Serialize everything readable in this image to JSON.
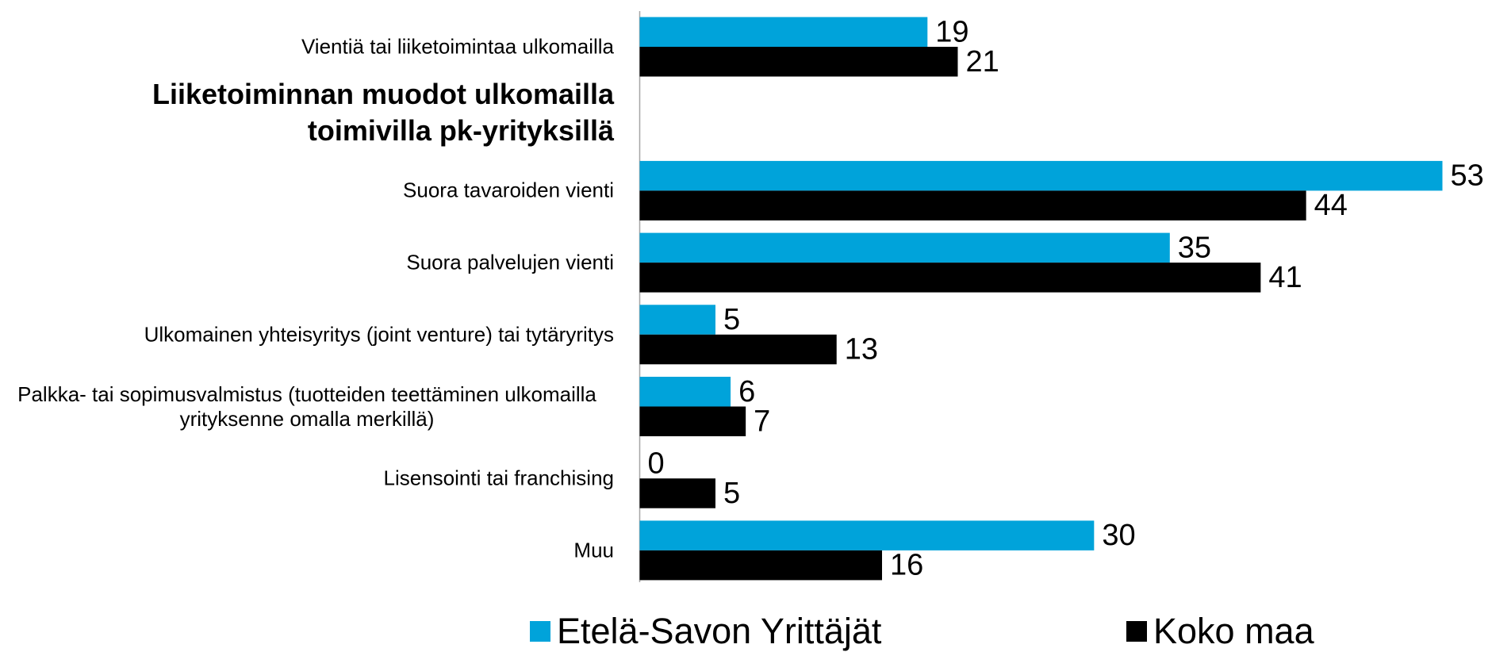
{
  "chart_data": {
    "type": "bar",
    "orientation": "horizontal",
    "title": "Liiketoiminnan muodot ulkomailla toimivilla pk-yrityksillä",
    "categories": [
      "Vientiä tai liiketoimintaa ulkomailla",
      null,
      "Suora tavaroiden vienti",
      "Suora palvelujen vienti",
      "Ulkomainen yhteisyritys (joint venture) tai tytäryritys",
      "Palkka- tai sopimusvalmistus (tuotteiden teettäminen ulkomailla yrityksenne omalla merkillä)",
      "Lisensointi tai franchising",
      "Muu"
    ],
    "series": [
      {
        "name": "Etelä-Savon Yrittäjät",
        "color": "#00a3da",
        "values": [
          19,
          null,
          53,
          35,
          5,
          6,
          0,
          30
        ]
      },
      {
        "name": "Koko maa",
        "color": "#000000",
        "values": [
          21,
          null,
          44,
          41,
          13,
          7,
          5,
          16
        ]
      }
    ],
    "legend": "bottom"
  }
}
